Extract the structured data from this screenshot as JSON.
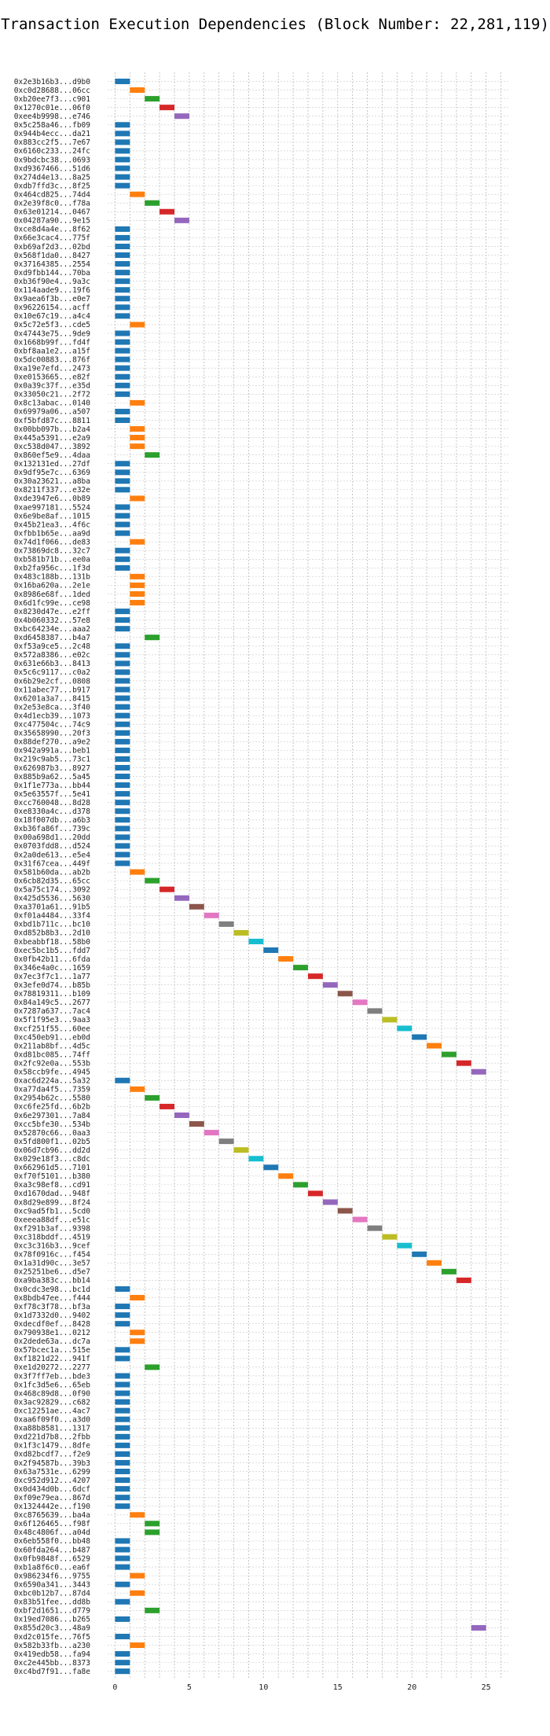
{
  "chart_data": {
    "type": "bar",
    "orientation": "horizontal-gantt",
    "title": "Transaction Execution Dependencies (Block Number: 22,281,119)",
    "xlabel": "",
    "ylabel": "",
    "xlim": [
      -0.5,
      26.5
    ],
    "xticks": [
      0,
      5,
      10,
      15,
      20,
      25
    ],
    "grid": true,
    "palette": [
      "#1f77b4",
      "#ff7f0e",
      "#2ca02c",
      "#d62728",
      "#9467bd",
      "#8c564b",
      "#e377c2",
      "#7f7f7f",
      "#bcbd22",
      "#17becf"
    ],
    "transactions": [
      {
        "label": "0x2e3b16b3...d9b0",
        "start": 0
      },
      {
        "label": "0xc0d28688...06cc",
        "start": 1
      },
      {
        "label": "0xb20ee7f3...c901",
        "start": 2
      },
      {
        "label": "0x1270c01e...06f0",
        "start": 3
      },
      {
        "label": "0xee4b9998...e746",
        "start": 4
      },
      {
        "label": "0x5c258a46...fb09",
        "start": 0
      },
      {
        "label": "0x944b4ecc...da21",
        "start": 0
      },
      {
        "label": "0x883cc2f5...7e67",
        "start": 0
      },
      {
        "label": "0x6160c233...24fc",
        "start": 0
      },
      {
        "label": "0x9bdcbc38...0693",
        "start": 0
      },
      {
        "label": "0xd9367466...51d6",
        "start": 0
      },
      {
        "label": "0x274d4e13...8a25",
        "start": 0
      },
      {
        "label": "0xdb7ffd3c...8f25",
        "start": 0
      },
      {
        "label": "0x464cd825...74d4",
        "start": 1
      },
      {
        "label": "0x2e39f8c0...f78a",
        "start": 2
      },
      {
        "label": "0x63e01214...0467",
        "start": 3
      },
      {
        "label": "0x04287a90...9e15",
        "start": 4
      },
      {
        "label": "0xce8d4a4e...8f62",
        "start": 0
      },
      {
        "label": "0x66e3cac4...775f",
        "start": 0
      },
      {
        "label": "0xb69af2d3...02bd",
        "start": 0
      },
      {
        "label": "0x568f1da0...8427",
        "start": 0
      },
      {
        "label": "0x37164385...2554",
        "start": 0
      },
      {
        "label": "0xd9fbb144...70ba",
        "start": 0
      },
      {
        "label": "0xb36f90e4...9a3c",
        "start": 0
      },
      {
        "label": "0x114aade9...19f6",
        "start": 0
      },
      {
        "label": "0x9aea6f3b...e0e7",
        "start": 0
      },
      {
        "label": "0x96226154...acff",
        "start": 0
      },
      {
        "label": "0x10e67c19...a4c4",
        "start": 0
      },
      {
        "label": "0x5c72e5f3...cde5",
        "start": 1
      },
      {
        "label": "0x47443e75...9de9",
        "start": 0
      },
      {
        "label": "0x1668b99f...fd4f",
        "start": 0
      },
      {
        "label": "0xbf8aa1e2...a15f",
        "start": 0
      },
      {
        "label": "0x5dc00883...876f",
        "start": 0
      },
      {
        "label": "0xa19e7efd...2473",
        "start": 0
      },
      {
        "label": "0xe0153665...e82f",
        "start": 0
      },
      {
        "label": "0x0a39c37f...e35d",
        "start": 0
      },
      {
        "label": "0x33050c21...2f72",
        "start": 0
      },
      {
        "label": "0x8c13abac...0140",
        "start": 1
      },
      {
        "label": "0x69979a06...a507",
        "start": 0
      },
      {
        "label": "0xf5bfd87c...8811",
        "start": 0
      },
      {
        "label": "0x00bb097b...b2a4",
        "start": 1
      },
      {
        "label": "0x445a5391...e2a9",
        "start": 1
      },
      {
        "label": "0xc538d047...3892",
        "start": 1
      },
      {
        "label": "0x860ef5e9...4daa",
        "start": 2
      },
      {
        "label": "0x132131ed...27df",
        "start": 0
      },
      {
        "label": "0x9df95e7c...6369",
        "start": 0
      },
      {
        "label": "0x30a23621...a8ba",
        "start": 0
      },
      {
        "label": "0x8211f337...e32e",
        "start": 0
      },
      {
        "label": "0xde3947e6...0b89",
        "start": 1
      },
      {
        "label": "0xae997181...5524",
        "start": 0
      },
      {
        "label": "0x6e9be8af...1015",
        "start": 0
      },
      {
        "label": "0x45b21ea3...4f6c",
        "start": 0
      },
      {
        "label": "0xfbb1b65e...aa9d",
        "start": 0
      },
      {
        "label": "0x74d1f066...de83",
        "start": 1
      },
      {
        "label": "0x73869dc8...32c7",
        "start": 0
      },
      {
        "label": "0xb581b71b...ee0a",
        "start": 0
      },
      {
        "label": "0xb2fa956c...1f3d",
        "start": 0
      },
      {
        "label": "0x483c188b...131b",
        "start": 1
      },
      {
        "label": "0x16ba620a...2e1e",
        "start": 1
      },
      {
        "label": "0x8986e68f...1ded",
        "start": 1
      },
      {
        "label": "0x6d1fc99e...ce98",
        "start": 1
      },
      {
        "label": "0x8230d47e...e2ff",
        "start": 0
      },
      {
        "label": "0x4b060332...57e8",
        "start": 0
      },
      {
        "label": "0xbc64234e...aaa2",
        "start": 0
      },
      {
        "label": "0xd6458387...b4a7",
        "start": 2
      },
      {
        "label": "0xf53a9ce5...2c48",
        "start": 0
      },
      {
        "label": "0x572a8386...e02c",
        "start": 0
      },
      {
        "label": "0x631e66b3...8413",
        "start": 0
      },
      {
        "label": "0x5c6c9117...c0a2",
        "start": 0
      },
      {
        "label": "0x6b29e2cf...0808",
        "start": 0
      },
      {
        "label": "0x11abec77...b917",
        "start": 0
      },
      {
        "label": "0x6201a3a7...8415",
        "start": 0
      },
      {
        "label": "0x2e53e8ca...3f40",
        "start": 0
      },
      {
        "label": "0x4d1ecb39...1073",
        "start": 0
      },
      {
        "label": "0xc477504c...74c9",
        "start": 0
      },
      {
        "label": "0x35658990...20f3",
        "start": 0
      },
      {
        "label": "0x88def270...a9e2",
        "start": 0
      },
      {
        "label": "0x942a991a...beb1",
        "start": 0
      },
      {
        "label": "0x219c9ab5...73c1",
        "start": 0
      },
      {
        "label": "0x626987b3...8927",
        "start": 0
      },
      {
        "label": "0x885b9a62...5a45",
        "start": 0
      },
      {
        "label": "0x1f1e773a...bb44",
        "start": 0
      },
      {
        "label": "0x5e63557f...5e41",
        "start": 0
      },
      {
        "label": "0xcc760048...8d28",
        "start": 0
      },
      {
        "label": "0xe8330a4c...d378",
        "start": 0
      },
      {
        "label": "0x18f007db...a6b3",
        "start": 0
      },
      {
        "label": "0xb36fa86f...739c",
        "start": 0
      },
      {
        "label": "0x00a698d1...20dd",
        "start": 0
      },
      {
        "label": "0x0703fdd8...d524",
        "start": 0
      },
      {
        "label": "0x2a0de613...e5e4",
        "start": 0
      },
      {
        "label": "0x31f67cea...449f",
        "start": 0
      },
      {
        "label": "0x581b60da...ab2b",
        "start": 1
      },
      {
        "label": "0x6cb82d35...65cc",
        "start": 2
      },
      {
        "label": "0x5a75c174...3092",
        "start": 3
      },
      {
        "label": "0x425d5536...5630",
        "start": 4
      },
      {
        "label": "0xa3701a61...91b5",
        "start": 5
      },
      {
        "label": "0xf01a4484...33f4",
        "start": 6
      },
      {
        "label": "0xbd1b711c...bc10",
        "start": 7
      },
      {
        "label": "0xd852b8b3...2d10",
        "start": 8
      },
      {
        "label": "0xbeabbf18...58b0",
        "start": 9
      },
      {
        "label": "0xec5bc1b5...fdd7",
        "start": 10
      },
      {
        "label": "0x0fb42b11...6fda",
        "start": 11
      },
      {
        "label": "0x346e4a0c...1659",
        "start": 12
      },
      {
        "label": "0x7ec3f7c1...1a77",
        "start": 13
      },
      {
        "label": "0x3efe0d74...b85b",
        "start": 14
      },
      {
        "label": "0x78819311...b109",
        "start": 15
      },
      {
        "label": "0x84a149c5...2677",
        "start": 16
      },
      {
        "label": "0x7287a637...7ac4",
        "start": 17
      },
      {
        "label": "0x5f1f95e3...9aa3",
        "start": 18
      },
      {
        "label": "0xcf251f55...60ee",
        "start": 19
      },
      {
        "label": "0xc450eb91...eb0d",
        "start": 20
      },
      {
        "label": "0x211ab8bf...4d5c",
        "start": 21
      },
      {
        "label": "0xd81bc085...74ff",
        "start": 22
      },
      {
        "label": "0x2fc92e0a...553b",
        "start": 23
      },
      {
        "label": "0x58ccb9fe...4945",
        "start": 24
      },
      {
        "label": "0xac6d224a...5a32",
        "start": 0
      },
      {
        "label": "0xa77da4f5...7359",
        "start": 1
      },
      {
        "label": "0x2954b62c...5580",
        "start": 2
      },
      {
        "label": "0xc6fe25fd...6b2b",
        "start": 3
      },
      {
        "label": "0x6e297301...7a84",
        "start": 4
      },
      {
        "label": "0xcc5bfe30...534b",
        "start": 5
      },
      {
        "label": "0x52870c66...0aa3",
        "start": 6
      },
      {
        "label": "0x5fd800f1...02b5",
        "start": 7
      },
      {
        "label": "0x06d7cb96...dd2d",
        "start": 8
      },
      {
        "label": "0x029e18f3...c8dc",
        "start": 9
      },
      {
        "label": "0x662961d5...7101",
        "start": 10
      },
      {
        "label": "0xf70f5101...b380",
        "start": 11
      },
      {
        "label": "0xa3c98ef8...cd91",
        "start": 12
      },
      {
        "label": "0xd1670dad...948f",
        "start": 13
      },
      {
        "label": "0x8d29e899...8f24",
        "start": 14
      },
      {
        "label": "0xc9ad5fb1...5cd0",
        "start": 15
      },
      {
        "label": "0xeeea88df...e51c",
        "start": 16
      },
      {
        "label": "0xf291b3af...9398",
        "start": 17
      },
      {
        "label": "0xc318bddf...4519",
        "start": 18
      },
      {
        "label": "0xc3c316b3...9cef",
        "start": 19
      },
      {
        "label": "0x78f0916c...f454",
        "start": 20
      },
      {
        "label": "0x1a31d90c...3e57",
        "start": 21
      },
      {
        "label": "0x25251be6...d5e7",
        "start": 22
      },
      {
        "label": "0xa9ba383c...bb14",
        "start": 23
      },
      {
        "label": "0x0cdc3e98...bc1d",
        "start": 0
      },
      {
        "label": "0x8bdb47ee...f444",
        "start": 1
      },
      {
        "label": "0xf78c3f78...bf3a",
        "start": 0
      },
      {
        "label": "0x1d7332d0...9402",
        "start": 0
      },
      {
        "label": "0xdecdf0ef...8428",
        "start": 0
      },
      {
        "label": "0x790938e1...0212",
        "start": 1
      },
      {
        "label": "0x2dede63a...dc7a",
        "start": 1
      },
      {
        "label": "0x57bcec1a...515e",
        "start": 0
      },
      {
        "label": "0xf1821d22...941f",
        "start": 0
      },
      {
        "label": "0xe1d20272...2277",
        "start": 2
      },
      {
        "label": "0x3f7ff7eb...bde3",
        "start": 0
      },
      {
        "label": "0x1fc3d5e6...65eb",
        "start": 0
      },
      {
        "label": "0x468c89d8...0f90",
        "start": 0
      },
      {
        "label": "0x3ac92829...c682",
        "start": 0
      },
      {
        "label": "0xc12251ae...4ac7",
        "start": 0
      },
      {
        "label": "0xaa6f09f0...a3d0",
        "start": 0
      },
      {
        "label": "0xa88b8581...1317",
        "start": 0
      },
      {
        "label": "0xd221d7b8...2fbb",
        "start": 0
      },
      {
        "label": "0x1f3c1479...8dfe",
        "start": 0
      },
      {
        "label": "0xd82bcdf7...f2e9",
        "start": 0
      },
      {
        "label": "0x2f94587b...39b3",
        "start": 0
      },
      {
        "label": "0x63a7531e...6299",
        "start": 0
      },
      {
        "label": "0xc952d912...4207",
        "start": 0
      },
      {
        "label": "0x0d434d0b...6dcf",
        "start": 0
      },
      {
        "label": "0xf09e79ea...867d",
        "start": 0
      },
      {
        "label": "0x1324442e...f190",
        "start": 0
      },
      {
        "label": "0xc8765639...ba4a",
        "start": 1
      },
      {
        "label": "0x6f126465...f98f",
        "start": 2
      },
      {
        "label": "0x48c4806f...a04d",
        "start": 2
      },
      {
        "label": "0x6eb558f0...bb48",
        "start": 0
      },
      {
        "label": "0x60fda264...b487",
        "start": 0
      },
      {
        "label": "0x0fb9848f...6529",
        "start": 0
      },
      {
        "label": "0xb1a8f6c0...ea6f",
        "start": 0
      },
      {
        "label": "0x986234f6...9755",
        "start": 1
      },
      {
        "label": "0x6590a341...3443",
        "start": 0
      },
      {
        "label": "0xbc0b12b7...87d4",
        "start": 1
      },
      {
        "label": "0x83b51fee...dd8b",
        "start": 0
      },
      {
        "label": "0xbf2d1651...d779",
        "start": 2
      },
      {
        "label": "0x19ed7086...b265",
        "start": 0
      },
      {
        "label": "0x855d20c3...48a9",
        "start": 24
      },
      {
        "label": "0xd2c015fe...76f5",
        "start": 0
      },
      {
        "label": "0x582b33fb...a230",
        "start": 1
      },
      {
        "label": "0x419edb58...fa94",
        "start": 0
      },
      {
        "label": "0xc2e445bb...8373",
        "start": 0
      },
      {
        "label": "0xc4bd7f91...fa8e",
        "start": 0
      }
    ]
  }
}
